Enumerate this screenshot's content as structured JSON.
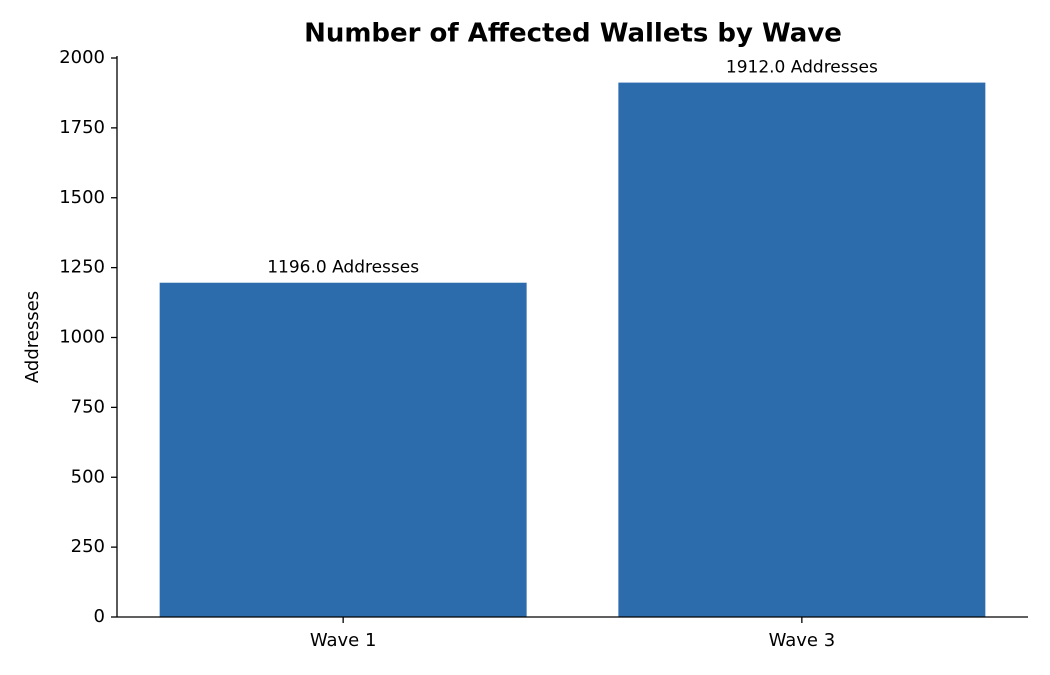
{
  "chart_data": {
    "type": "bar",
    "title": "Number of Affected Wallets by Wave",
    "y_label": "Addresses",
    "categories": [
      "Wave 1",
      "Wave 3"
    ],
    "values": [
      1196,
      1912
    ],
    "value_labels": [
      "1196.0 Addresses",
      "1912.0 Addresses"
    ],
    "color": "#2c6cad",
    "ylim": [
      0,
      2000
    ],
    "yticks": [
      0,
      250,
      500,
      750,
      1000,
      1250,
      1500,
      1750,
      2000
    ],
    "grid": false
  }
}
